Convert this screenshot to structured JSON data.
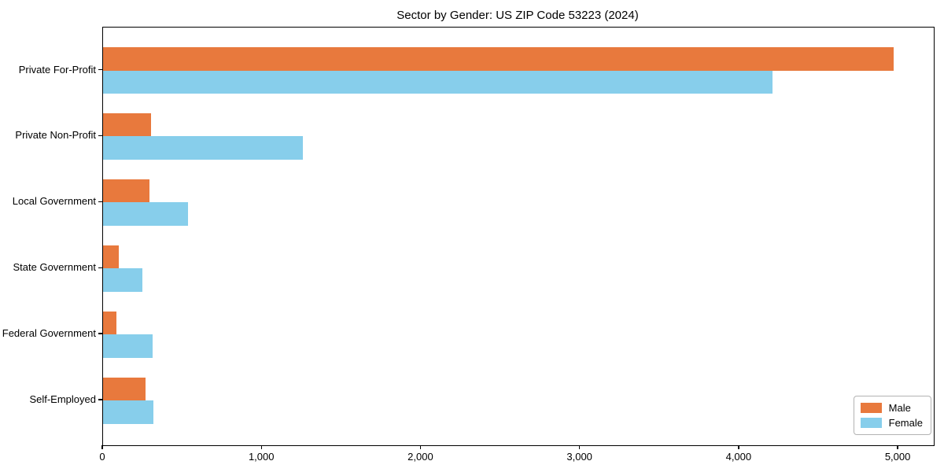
{
  "title": "Sector by Gender: US ZIP Code 53223 (2024)",
  "colors": {
    "male": "#e8793d",
    "female": "#87ceeb",
    "axis": "#000000",
    "legend_border": "#b3b3b3",
    "background": "#ffffff"
  },
  "legend": {
    "items": [
      {
        "label": "Male",
        "color": "#e8793d"
      },
      {
        "label": "Female",
        "color": "#87ceeb"
      }
    ],
    "position": "lower right"
  },
  "chart_data": {
    "type": "bar",
    "orientation": "horizontal",
    "title": "Sector by Gender: US ZIP Code 53223 (2024)",
    "categories": [
      "Private For-Profit",
      "Private Non-Profit",
      "Local Government",
      "State Government",
      "Federal Government",
      "Self-Employed"
    ],
    "series": [
      {
        "name": "Male",
        "color": "#e8793d",
        "values": [
          4970,
          300,
          290,
          100,
          85,
          265
        ]
      },
      {
        "name": "Female",
        "color": "#87ceeb",
        "values": [
          4210,
          1255,
          535,
          245,
          310,
          315
        ]
      }
    ],
    "xlabel": "",
    "ylabel": "",
    "xlim": [
      0,
      5222
    ],
    "xticks": [
      0,
      1000,
      2000,
      3000,
      4000,
      5000
    ],
    "xtick_labels": [
      "0",
      "1,000",
      "2,000",
      "3,000",
      "4,000",
      "5,000"
    ],
    "grid": false,
    "legend_position": "lower right"
  }
}
